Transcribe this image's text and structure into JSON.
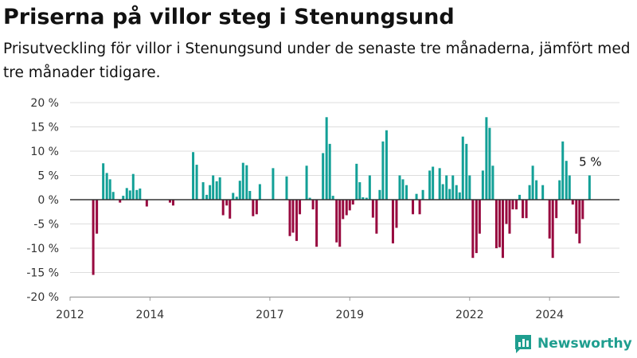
{
  "title": "Priserna på villor steg i Stenungsund",
  "subtitle": "Prisutveckling för villor i Stenungsund under de senaste tre månaderna, jämfört med tre månader tidigare.",
  "logo": {
    "text": "Newsworthy",
    "icon": "bar-chart-logo-icon",
    "color": "#1f9e8f"
  },
  "colors": {
    "positive": "#13a097",
    "negative": "#98093f",
    "zero_line": "#333333",
    "grid": "#dddddd"
  },
  "chart_data": {
    "type": "bar",
    "title": "",
    "xlabel": "",
    "ylabel": "",
    "ylim": [
      -20,
      20
    ],
    "yticks": [
      {
        "value": 20,
        "label": "20 %"
      },
      {
        "value": 15,
        "label": "15 %"
      },
      {
        "value": 10,
        "label": "10 %"
      },
      {
        "value": 5,
        "label": "5 %"
      },
      {
        "value": 0,
        "label": "0 %"
      },
      {
        "value": -5,
        "label": "-5 %"
      },
      {
        "value": -10,
        "label": "-10 %"
      },
      {
        "value": -15,
        "label": "-15 %"
      },
      {
        "value": -20,
        "label": "-20 %"
      }
    ],
    "xlim": [
      2012.0,
      2025.75
    ],
    "xticks": [
      {
        "value": 2012,
        "label": "2012"
      },
      {
        "value": 2014,
        "label": "2014"
      },
      {
        "value": 2017,
        "label": "2017"
      },
      {
        "value": 2019,
        "label": "2019"
      },
      {
        "value": 2022,
        "label": "2022"
      },
      {
        "value": 2024,
        "label": "2024"
      }
    ],
    "grid": true,
    "x": [
      2012.58,
      2012.67,
      2012.83,
      2012.92,
      2013.0,
      2013.08,
      2013.17,
      2013.25,
      2013.33,
      2013.42,
      2013.5,
      2013.58,
      2013.67,
      2013.75,
      2013.83,
      2013.92,
      2014.0,
      2014.5,
      2014.58,
      2015.08,
      2015.17,
      2015.33,
      2015.42,
      2015.5,
      2015.58,
      2015.67,
      2015.75,
      2015.83,
      2015.92,
      2016.0,
      2016.08,
      2016.17,
      2016.25,
      2016.33,
      2016.42,
      2016.5,
      2016.58,
      2016.67,
      2016.75,
      2016.83,
      2016.92,
      2017.08,
      2017.17,
      2017.42,
      2017.5,
      2017.58,
      2017.67,
      2017.75,
      2017.83,
      2017.92,
      2018.0,
      2018.08,
      2018.17,
      2018.25,
      2018.33,
      2018.42,
      2018.5,
      2018.58,
      2018.67,
      2018.75,
      2018.83,
      2018.92,
      2019.0,
      2019.08,
      2019.17,
      2019.25,
      2019.33,
      2019.42,
      2019.5,
      2019.58,
      2019.67,
      2019.75,
      2019.83,
      2019.92,
      2020.0,
      2020.08,
      2020.17,
      2020.25,
      2020.33,
      2020.42,
      2020.5,
      2020.58,
      2020.67,
      2020.75,
      2020.83,
      2020.92,
      2021.0,
      2021.08,
      2021.17,
      2021.25,
      2021.33,
      2021.42,
      2021.5,
      2021.58,
      2021.67,
      2021.75,
      2021.83,
      2021.92,
      2022.0,
      2022.08,
      2022.17,
      2022.25,
      2022.33,
      2022.42,
      2022.5,
      2022.58,
      2022.67,
      2022.75,
      2022.83,
      2022.92,
      2023.0,
      2023.08,
      2023.17,
      2023.25,
      2023.33,
      2023.42,
      2023.5,
      2023.58,
      2023.67,
      2023.75,
      2023.83,
      2023.92,
      2024.0,
      2024.08,
      2024.17,
      2024.25,
      2024.33,
      2024.42,
      2024.5,
      2024.58,
      2024.67,
      2024.75,
      2024.83,
      2025.0
    ],
    "values": [
      -15.5,
      -7.0,
      7.5,
      5.5,
      4.2,
      1.6,
      0.0,
      -0.6,
      0.8,
      2.4,
      1.9,
      5.3,
      2.0,
      2.3,
      0.0,
      -1.4,
      0.0,
      -0.6,
      -1.2,
      9.8,
      7.2,
      3.6,
      1.0,
      3.0,
      5.0,
      3.8,
      4.6,
      -3.2,
      -1.2,
      -3.9,
      1.4,
      0.6,
      3.9,
      7.6,
      7.1,
      1.8,
      -3.4,
      -3.0,
      3.2,
      0.0,
      0.0,
      6.5,
      0.0,
      4.8,
      -7.5,
      -6.8,
      -8.5,
      -3.0,
      0.0,
      7.0,
      0.4,
      -2.0,
      -9.7,
      0.0,
      9.6,
      17.0,
      11.5,
      0.8,
      -8.8,
      -9.7,
      -4.0,
      -3.2,
      -2.2,
      -1.0,
      7.4,
      3.6,
      0.5,
      0.4,
      5.0,
      -3.7,
      -7.0,
      2.0,
      12.0,
      14.3,
      0.0,
      -9.0,
      -5.8,
      5.0,
      4.2,
      3.0,
      0.0,
      -3.0,
      1.2,
      -3.0,
      2.0,
      0.0,
      6.0,
      6.8,
      0.0,
      6.5,
      3.2,
      5.0,
      2.2,
      5.0,
      3.0,
      1.5,
      13.0,
      11.5,
      5.0,
      -12.0,
      -11.0,
      -7.0,
      6.0,
      17.0,
      14.8,
      7.0,
      -10.0,
      -9.8,
      -12.0,
      -5.0,
      -7.0,
      -2.0,
      -2.0,
      1.0,
      -3.8,
      -3.8,
      3.0,
      7.0,
      4.0,
      0.0,
      3.0,
      0.0,
      -8.0,
      -12.0,
      -3.8,
      4.0,
      12.0,
      8.0,
      5.0,
      -1.0,
      -7.0,
      -9.0,
      -4.0,
      5.0
    ],
    "annotations": [
      {
        "x": 2025.0,
        "y": 5.0,
        "label": "5 %"
      }
    ]
  }
}
